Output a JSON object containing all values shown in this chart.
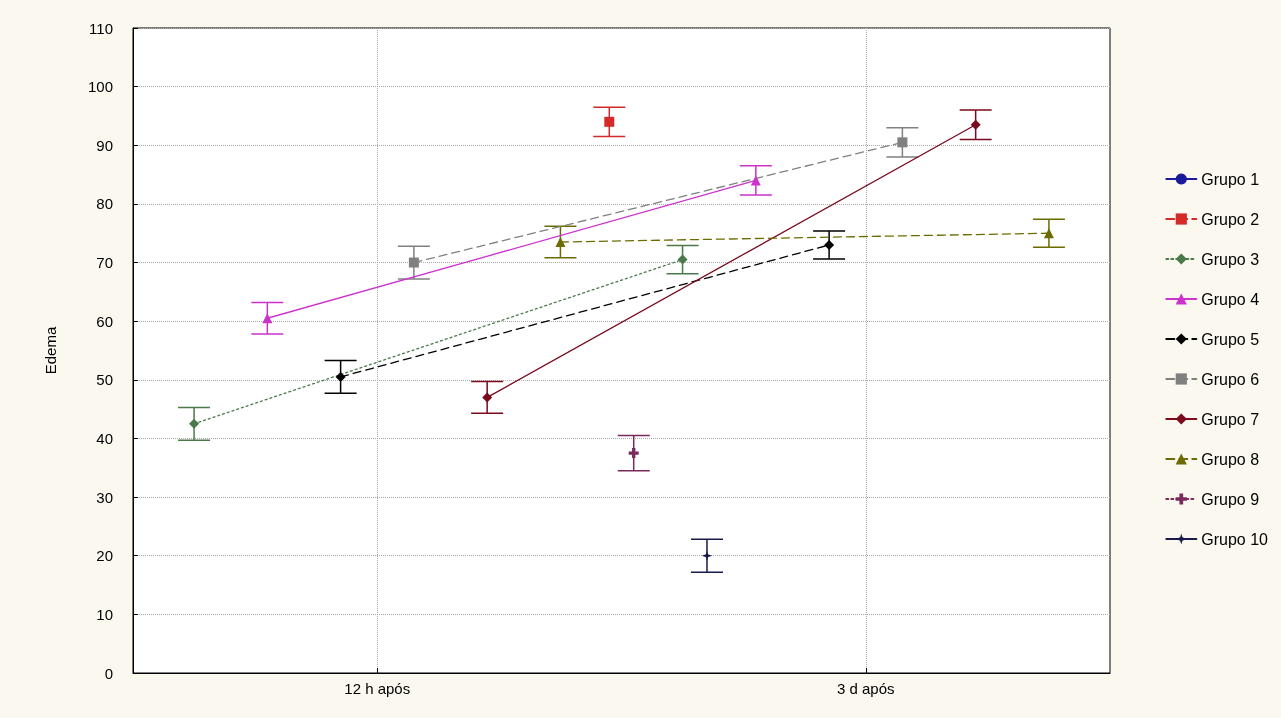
{
  "chart_data": {
    "type": "line",
    "ylabel": "Edema",
    "categories": [
      null,
      null,
      null,
      null,
      null,
      null,
      null,
      null,
      null,
      null,
      null,
      null,
      null,
      null,
      null,
      null,
      null,
      null,
      null,
      null,
      "12 h após",
      null,
      null,
      null,
      null,
      null,
      null,
      null,
      null,
      null,
      null,
      null,
      null,
      null,
      null,
      null,
      null,
      null,
      null,
      null,
      null,
      null,
      null,
      null,
      null,
      null,
      null,
      null,
      null,
      null,
      null,
      null,
      null,
      null,
      null,
      null,
      null,
      null,
      null,
      null,
      "3 d após",
      null,
      null,
      null,
      null,
      null,
      null,
      null,
      null,
      null,
      null,
      null,
      null,
      null,
      null,
      null,
      null,
      null,
      null,
      null,
      null
    ],
    "ylim": [
      0,
      110
    ],
    "yticks": [
      0,
      10,
      20,
      30,
      40,
      50,
      60,
      70,
      80,
      90,
      100,
      110
    ],
    "grid": true,
    "legend": "right",
    "series": [
      {
        "name": "Grupo 1",
        "color": "#1a1a9a",
        "marker": "circle",
        "line_style": "solid",
        "values": [
          null,
          null,
          null,
          null,
          null,
          null,
          null,
          null,
          null,
          null,
          null,
          null,
          null,
          null,
          null,
          null,
          null,
          null,
          null,
          null,
          null,
          null,
          null,
          null,
          null,
          null,
          null,
          null,
          null,
          null,
          null,
          null,
          null,
          null,
          null,
          null,
          null,
          null,
          null,
          null,
          null,
          null,
          null,
          null,
          null,
          null,
          null,
          null,
          null,
          null,
          null,
          null,
          null,
          null,
          null,
          null,
          null,
          null,
          null,
          null,
          null,
          null,
          null,
          null,
          null,
          null,
          null,
          null,
          null,
          null,
          null,
          null,
          null,
          null,
          null,
          null,
          null,
          null,
          null,
          null,
          null
        ]
      },
      {
        "name": "Grupo 2",
        "color": "#d42a2a",
        "marker": "square",
        "line_style": "dashed",
        "values": [
          null,
          null,
          null,
          null,
          null,
          null,
          null,
          null,
          null,
          null,
          null,
          null,
          null,
          null,
          null,
          null,
          null,
          null,
          null,
          null,
          null,
          null,
          null,
          null,
          null,
          null,
          null,
          null,
          null,
          null,
          null,
          null,
          null,
          null,
          null,
          null,
          null,
          null,
          null,
          94,
          null,
          null,
          null,
          null,
          null,
          null,
          null,
          null,
          null,
          null,
          null,
          null,
          null,
          null,
          null,
          null,
          null,
          null,
          null,
          null,
          null,
          null,
          null,
          null,
          null,
          null,
          null,
          null,
          null,
          null,
          null,
          null,
          null,
          null,
          null,
          null,
          null,
          null,
          null,
          null,
          null
        ],
        "errors": [
          null,
          null,
          null,
          null,
          null,
          null,
          null,
          null,
          null,
          null,
          null,
          null,
          null,
          null,
          null,
          null,
          null,
          null,
          null,
          null,
          null,
          null,
          null,
          null,
          null,
          null,
          null,
          null,
          null,
          null,
          null,
          null,
          null,
          null,
          null,
          null,
          null,
          null,
          null,
          2.5,
          null,
          null,
          null,
          null,
          null,
          null,
          null,
          null,
          null,
          null,
          null,
          null,
          null,
          null,
          null,
          null,
          null,
          null,
          null,
          null,
          null,
          null,
          null,
          null,
          null,
          null,
          null,
          null,
          null,
          null,
          null,
          null,
          null,
          null,
          null,
          null,
          null,
          null,
          null,
          null,
          null
        ]
      },
      {
        "name": "Grupo 3",
        "color": "#4a7a4a",
        "marker": "diamond",
        "line_style": "dotted",
        "values": [
          null,
          null,
          null,
          null,
          null,
          42.5,
          null,
          null,
          null,
          null,
          null,
          null,
          null,
          null,
          null,
          null,
          null,
          null,
          null,
          null,
          null,
          null,
          null,
          null,
          null,
          null,
          null,
          null,
          null,
          null,
          null,
          null,
          null,
          null,
          null,
          null,
          null,
          null,
          null,
          null,
          null,
          null,
          null,
          null,
          null,
          70.5,
          null,
          null,
          null,
          null,
          null,
          null,
          null,
          null,
          null,
          null,
          null,
          null,
          null,
          null,
          null,
          null,
          null,
          null,
          null,
          null,
          null,
          null,
          null,
          null,
          null,
          null,
          null,
          null,
          null,
          null,
          null,
          null,
          null,
          null,
          null
        ],
        "errors": [
          null,
          null,
          null,
          null,
          null,
          2.8,
          null,
          null,
          null,
          null,
          null,
          null,
          null,
          null,
          null,
          null,
          null,
          null,
          null,
          null,
          null,
          null,
          null,
          null,
          null,
          null,
          null,
          null,
          null,
          null,
          null,
          null,
          null,
          null,
          null,
          null,
          null,
          null,
          null,
          null,
          null,
          null,
          null,
          null,
          null,
          2.4,
          null,
          null,
          null,
          null,
          null,
          null,
          null,
          null,
          null,
          null,
          null,
          null,
          null,
          null,
          null,
          null,
          null,
          null,
          null,
          null,
          null,
          null,
          null,
          null,
          null,
          null,
          null,
          null,
          null,
          null,
          null,
          null,
          null,
          null,
          null
        ]
      },
      {
        "name": "Grupo 4",
        "color": "#cc33cc",
        "marker": "triangle",
        "line_style": "solid",
        "values": [
          null,
          null,
          null,
          null,
          null,
          null,
          null,
          null,
          null,
          null,
          null,
          60.5,
          null,
          null,
          null,
          null,
          null,
          null,
          null,
          null,
          null,
          null,
          null,
          null,
          null,
          null,
          null,
          null,
          null,
          null,
          null,
          null,
          null,
          null,
          null,
          null,
          null,
          null,
          null,
          null,
          null,
          null,
          null,
          null,
          null,
          null,
          null,
          null,
          null,
          null,
          null,
          84,
          null,
          null,
          null,
          null,
          null,
          null,
          null,
          null,
          null,
          null,
          null,
          null,
          null,
          null,
          null,
          null,
          null,
          null,
          null,
          null,
          null,
          null,
          null,
          null,
          null,
          null,
          null,
          null,
          null
        ],
        "errors": [
          null,
          null,
          null,
          null,
          null,
          null,
          null,
          null,
          null,
          null,
          null,
          2.7,
          null,
          null,
          null,
          null,
          null,
          null,
          null,
          null,
          null,
          null,
          null,
          null,
          null,
          null,
          null,
          null,
          null,
          null,
          null,
          null,
          null,
          null,
          null,
          null,
          null,
          null,
          null,
          null,
          null,
          null,
          null,
          null,
          null,
          null,
          null,
          null,
          null,
          null,
          null,
          2.5,
          null,
          null,
          null,
          null,
          null,
          null,
          null,
          null,
          null,
          null,
          null,
          null,
          null,
          null,
          null,
          null,
          null,
          null,
          null,
          null,
          null,
          null,
          null,
          null,
          null,
          null,
          null,
          null,
          null
        ]
      },
      {
        "name": "Grupo 5",
        "color": "#000000",
        "marker": "diamond",
        "line_style": "dashed",
        "values": [
          null,
          null,
          null,
          null,
          null,
          null,
          null,
          null,
          null,
          null,
          null,
          null,
          null,
          null,
          null,
          null,
          null,
          50.5,
          null,
          null,
          null,
          null,
          null,
          null,
          null,
          null,
          null,
          null,
          null,
          null,
          null,
          null,
          null,
          null,
          null,
          null,
          null,
          null,
          null,
          null,
          null,
          null,
          null,
          null,
          null,
          null,
          null,
          null,
          null,
          null,
          null,
          null,
          null,
          null,
          null,
          null,
          null,
          73,
          null,
          null,
          null,
          null,
          null,
          null,
          null,
          null,
          null,
          null,
          null,
          null,
          null,
          null,
          null,
          null,
          null,
          null,
          null,
          null,
          null,
          null,
          null
        ],
        "errors": [
          null,
          null,
          null,
          null,
          null,
          null,
          null,
          null,
          null,
          null,
          null,
          null,
          null,
          null,
          null,
          null,
          null,
          2.8,
          null,
          null,
          null,
          null,
          null,
          null,
          null,
          null,
          null,
          null,
          null,
          null,
          null,
          null,
          null,
          null,
          null,
          null,
          null,
          null,
          null,
          null,
          null,
          null,
          null,
          null,
          null,
          null,
          null,
          null,
          null,
          null,
          null,
          null,
          null,
          null,
          null,
          null,
          null,
          2.4,
          null,
          null,
          null,
          null,
          null,
          null,
          null,
          null,
          null,
          null,
          null,
          null,
          null,
          null,
          null,
          null,
          null,
          null,
          null,
          null,
          null,
          null,
          null
        ]
      },
      {
        "name": "Grupo 6",
        "color": "#808080",
        "marker": "square",
        "line_style": "dashed",
        "values": [
          null,
          null,
          null,
          null,
          null,
          null,
          null,
          null,
          null,
          null,
          null,
          null,
          null,
          null,
          null,
          null,
          null,
          null,
          null,
          null,
          null,
          null,
          null,
          70,
          null,
          null,
          null,
          null,
          null,
          null,
          null,
          null,
          null,
          null,
          null,
          null,
          null,
          null,
          null,
          null,
          null,
          null,
          null,
          null,
          null,
          null,
          null,
          null,
          null,
          null,
          null,
          null,
          null,
          null,
          null,
          null,
          null,
          null,
          null,
          null,
          null,
          null,
          null,
          90.5,
          null,
          null,
          null,
          null,
          null,
          null,
          null,
          null,
          null,
          null,
          null,
          null,
          null,
          null,
          null,
          null,
          null
        ],
        "errors": [
          null,
          null,
          null,
          null,
          null,
          null,
          null,
          null,
          null,
          null,
          null,
          null,
          null,
          null,
          null,
          null,
          null,
          null,
          null,
          null,
          null,
          null,
          null,
          2.8,
          null,
          null,
          null,
          null,
          null,
          null,
          null,
          null,
          null,
          null,
          null,
          null,
          null,
          null,
          null,
          null,
          null,
          null,
          null,
          null,
          null,
          null,
          null,
          null,
          null,
          null,
          null,
          null,
          null,
          null,
          null,
          null,
          null,
          null,
          null,
          null,
          null,
          null,
          null,
          2.5,
          null,
          null,
          null,
          null,
          null,
          null,
          null,
          null,
          null,
          null,
          null,
          null,
          null,
          null,
          null,
          null,
          null
        ]
      },
      {
        "name": "Grupo 7",
        "color": "#7a0a1e",
        "marker": "diamond",
        "line_style": "solid",
        "values": [
          null,
          null,
          null,
          null,
          null,
          null,
          null,
          null,
          null,
          null,
          null,
          null,
          null,
          null,
          null,
          null,
          null,
          null,
          null,
          null,
          null,
          null,
          null,
          null,
          null,
          null,
          null,
          null,
          null,
          47,
          null,
          null,
          null,
          null,
          null,
          null,
          null,
          null,
          null,
          null,
          null,
          null,
          null,
          null,
          null,
          null,
          null,
          null,
          null,
          null,
          null,
          null,
          null,
          null,
          null,
          null,
          null,
          null,
          null,
          null,
          null,
          null,
          null,
          null,
          null,
          null,
          null,
          null,
          null,
          93.5,
          null,
          null,
          null,
          null,
          null,
          null,
          null,
          null,
          null,
          null,
          null
        ],
        "errors": [
          null,
          null,
          null,
          null,
          null,
          null,
          null,
          null,
          null,
          null,
          null,
          null,
          null,
          null,
          null,
          null,
          null,
          null,
          null,
          null,
          null,
          null,
          null,
          null,
          null,
          null,
          null,
          null,
          null,
          2.7,
          null,
          null,
          null,
          null,
          null,
          null,
          null,
          null,
          null,
          null,
          null,
          null,
          null,
          null,
          null,
          null,
          null,
          null,
          null,
          null,
          null,
          null,
          null,
          null,
          null,
          null,
          null,
          null,
          null,
          null,
          null,
          null,
          null,
          null,
          null,
          null,
          null,
          null,
          null,
          2.5,
          null,
          null,
          null,
          null,
          null,
          null,
          null,
          null,
          null,
          null,
          null
        ]
      },
      {
        "name": "Grupo 8",
        "color": "#6b6b00",
        "marker": "triangle",
        "line_style": "dashed",
        "values": [
          null,
          null,
          null,
          null,
          null,
          null,
          null,
          null,
          null,
          null,
          null,
          null,
          null,
          null,
          null,
          null,
          null,
          null,
          null,
          null,
          null,
          null,
          null,
          null,
          null,
          null,
          null,
          null,
          null,
          null,
          null,
          null,
          null,
          null,
          null,
          73.5,
          null,
          null,
          null,
          null,
          null,
          null,
          null,
          null,
          null,
          null,
          null,
          null,
          null,
          null,
          null,
          null,
          null,
          null,
          null,
          null,
          null,
          null,
          null,
          null,
          null,
          null,
          null,
          null,
          null,
          null,
          null,
          null,
          null,
          null,
          null,
          null,
          null,
          null,
          null,
          75,
          null,
          null,
          null,
          null,
          null
        ],
        "errors": [
          null,
          null,
          null,
          null,
          null,
          null,
          null,
          null,
          null,
          null,
          null,
          null,
          null,
          null,
          null,
          null,
          null,
          null,
          null,
          null,
          null,
          null,
          null,
          null,
          null,
          null,
          null,
          null,
          null,
          null,
          null,
          null,
          null,
          null,
          null,
          2.7,
          null,
          null,
          null,
          null,
          null,
          null,
          null,
          null,
          null,
          null,
          null,
          null,
          null,
          null,
          null,
          null,
          null,
          null,
          null,
          null,
          null,
          null,
          null,
          null,
          null,
          null,
          null,
          null,
          null,
          null,
          null,
          null,
          null,
          null,
          null,
          null,
          null,
          null,
          null,
          2.4,
          null,
          null,
          null,
          null,
          null
        ]
      },
      {
        "name": "Grupo 9",
        "color": "#7a2a5a",
        "marker": "cross",
        "line_style": "dotted",
        "values": [
          null,
          null,
          null,
          null,
          null,
          null,
          null,
          null,
          null,
          null,
          null,
          null,
          null,
          null,
          null,
          null,
          null,
          null,
          null,
          null,
          null,
          null,
          null,
          null,
          null,
          null,
          null,
          null,
          null,
          null,
          null,
          null,
          null,
          null,
          null,
          null,
          null,
          null,
          null,
          null,
          null,
          37.5,
          null,
          null,
          null,
          null,
          null,
          null,
          null,
          null,
          null,
          null,
          null,
          null,
          null,
          null,
          null,
          null,
          null,
          null,
          null,
          null,
          null,
          null,
          null,
          null,
          null,
          null,
          null,
          null,
          null,
          null,
          null,
          null,
          null,
          null,
          null,
          null,
          null,
          null,
          null
        ],
        "errors": [
          null,
          null,
          null,
          null,
          null,
          null,
          null,
          null,
          null,
          null,
          null,
          null,
          null,
          null,
          null,
          null,
          null,
          null,
          null,
          null,
          null,
          null,
          null,
          null,
          null,
          null,
          null,
          null,
          null,
          null,
          null,
          null,
          null,
          null,
          null,
          null,
          null,
          null,
          null,
          null,
          null,
          3,
          null,
          null,
          null,
          null,
          null,
          null,
          null,
          null,
          null,
          null,
          null,
          null,
          null,
          null,
          null,
          null,
          null,
          null,
          null,
          null,
          null,
          null,
          null,
          null,
          null,
          null,
          null,
          null,
          null,
          null,
          null,
          null,
          null,
          null,
          null,
          null,
          null,
          null,
          null
        ]
      },
      {
        "name": "Grupo 10",
        "color": "#1a1a4a",
        "marker": "star",
        "line_style": "solid",
        "values": [
          null,
          null,
          null,
          null,
          null,
          null,
          null,
          null,
          null,
          null,
          null,
          null,
          null,
          null,
          null,
          null,
          null,
          null,
          null,
          null,
          null,
          null,
          null,
          null,
          null,
          null,
          null,
          null,
          null,
          null,
          null,
          null,
          null,
          null,
          null,
          null,
          null,
          null,
          null,
          null,
          null,
          null,
          null,
          null,
          null,
          null,
          null,
          20,
          null,
          null,
          null,
          null,
          null,
          null,
          null,
          null,
          null,
          null,
          null,
          null,
          null,
          null,
          null,
          null,
          null,
          null,
          null,
          null,
          null,
          null,
          null,
          null,
          null,
          null,
          null,
          null,
          null,
          null,
          null,
          null,
          null
        ],
        "errors": [
          null,
          null,
          null,
          null,
          null,
          null,
          null,
          null,
          null,
          null,
          null,
          null,
          null,
          null,
          null,
          null,
          null,
          null,
          null,
          null,
          null,
          null,
          null,
          null,
          null,
          null,
          null,
          null,
          null,
          null,
          null,
          null,
          null,
          null,
          null,
          null,
          null,
          null,
          null,
          null,
          null,
          null,
          null,
          null,
          null,
          null,
          null,
          2.8,
          null,
          null,
          null,
          null,
          null,
          null,
          null,
          null,
          null,
          null,
          null,
          null,
          null,
          null,
          null,
          null,
          null,
          null,
          null,
          null,
          null,
          null,
          null,
          null,
          null,
          null,
          null,
          null,
          null,
          null,
          null,
          null,
          null
        ]
      }
    ]
  }
}
